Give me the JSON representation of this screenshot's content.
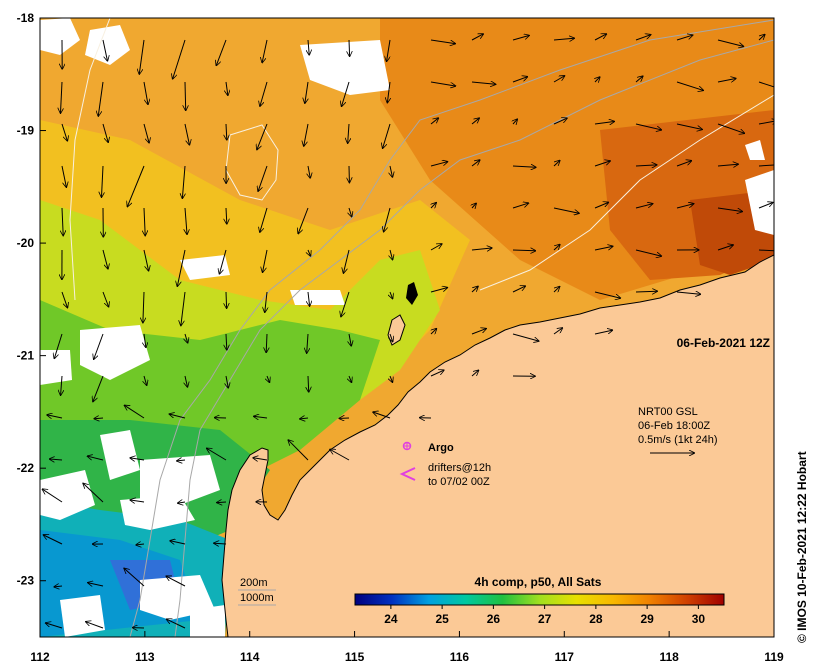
{
  "map": {
    "lon_ticks": [
      "112",
      "113",
      "114",
      "115",
      "116",
      "117",
      "118",
      "119"
    ],
    "lat_ticks": [
      "-18",
      "-19",
      "-20",
      "-21",
      "-22",
      "-23"
    ],
    "lon_range": [
      112,
      119
    ],
    "lat_range": [
      -23.5,
      -18
    ],
    "date_stamp": "06-Feb-2021 12Z",
    "credit": "© IMOS 10-Feb-2021 12:22 Hobart",
    "land_color": "#fbc996",
    "cloud_color": "#ffffff"
  },
  "current_legend": {
    "line1": "NRT00 GSL",
    "line2": "06-Feb 18:00Z",
    "line3": "0.5m/s (1kt 24h)"
  },
  "markers": {
    "argo_label": "Argo",
    "drifters_line1": "drifters@12h",
    "drifters_line2": "to 07/02 00Z",
    "marker_color": "#e040e0"
  },
  "depth_legend": {
    "contour1": "200m",
    "contour2": "1000m"
  },
  "colorbar": {
    "title": "4h comp, p50, All Sats",
    "ticks": [
      "24",
      "25",
      "26",
      "27",
      "28",
      "29",
      "30"
    ],
    "range": [
      23.3,
      30.5
    ],
    "colors": [
      "#00007f",
      "#0030c0",
      "#00a0e0",
      "#00c8a0",
      "#20c040",
      "#a0e020",
      "#e8e000",
      "#f8b800",
      "#f08000",
      "#d04000",
      "#a00000"
    ]
  }
}
